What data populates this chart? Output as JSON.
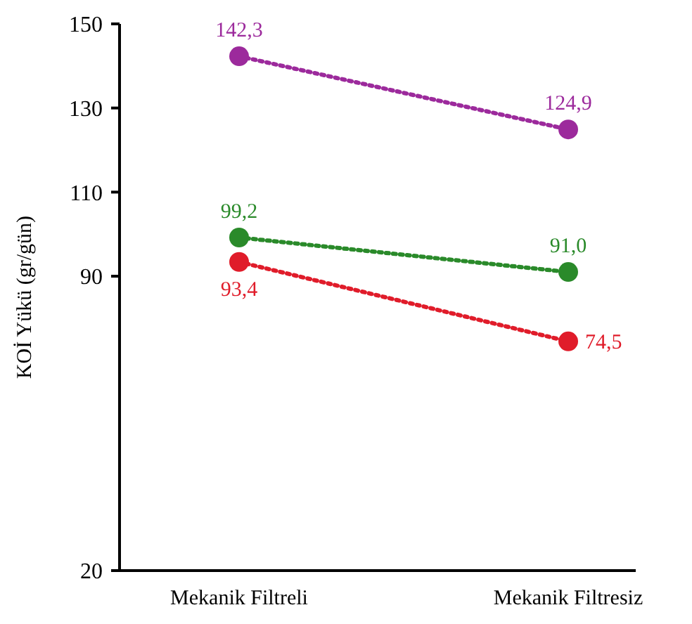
{
  "chart_data": {
    "type": "line",
    "ylabel": "KOİ Yükü (gr/gün)",
    "categories": [
      "Mekanik Filtreli",
      "Mekanik Filtresiz"
    ],
    "series": [
      {
        "color": "#9c2a9c",
        "values": [
          142.3,
          124.9
        ],
        "value_labels": [
          "142,3",
          "124,9"
        ]
      },
      {
        "color": "#2a8a2a",
        "values": [
          99.2,
          91.0
        ],
        "value_labels": [
          "99,2",
          "91,0"
        ]
      },
      {
        "color": "#e01c2a",
        "values": [
          93.4,
          74.5
        ],
        "value_labels": [
          "93,4",
          "74,5"
        ]
      }
    ],
    "ylim": [
      20,
      150
    ],
    "yticks": [
      20,
      90,
      110,
      130,
      150
    ],
    "marker": "circle",
    "line_style": "dotted",
    "grid": false
  }
}
